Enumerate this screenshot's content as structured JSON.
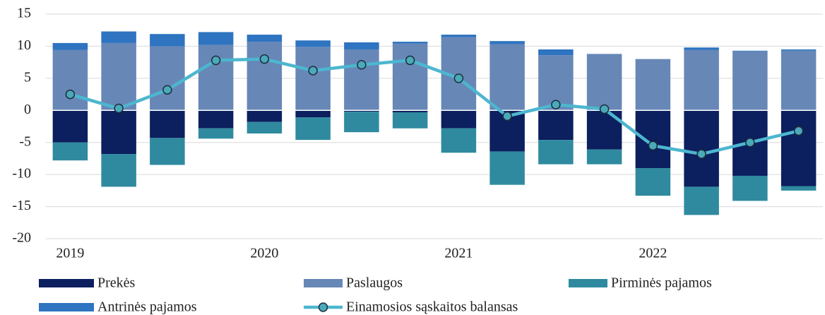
{
  "chart_data": {
    "type": "bar",
    "stacked": true,
    "categories": [
      "2019",
      null,
      null,
      null,
      "2020",
      null,
      null,
      null,
      "2021",
      null,
      null,
      null,
      "2022",
      null,
      null,
      null
    ],
    "series": [
      {
        "name": "Prekės",
        "type": "bar",
        "color": "#0c1f5e",
        "values": [
          -5.0,
          -6.8,
          -4.3,
          -2.8,
          -1.8,
          -1.1,
          -0.2,
          -0.3,
          -2.8,
          -6.4,
          -4.6,
          -6.1,
          -9.0,
          -11.9,
          -10.2,
          -11.8
        ]
      },
      {
        "name": "Paslaugos",
        "type": "bar",
        "color": "#6787b7",
        "values": [
          9.4,
          10.5,
          10.0,
          10.2,
          10.7,
          9.9,
          9.5,
          10.4,
          11.4,
          10.3,
          8.6,
          8.8,
          8.0,
          9.4,
          9.2,
          9.3
        ]
      },
      {
        "name": "Pirminės pajamos",
        "type": "bar",
        "color": "#2f8a9f",
        "values": [
          -2.8,
          -5.1,
          -4.2,
          -1.6,
          -1.8,
          -3.5,
          -3.2,
          -2.5,
          -3.8,
          -5.2,
          -3.8,
          -2.3,
          -4.3,
          -4.4,
          -3.9,
          -0.7
        ]
      },
      {
        "name": "Antrinės pajamos",
        "type": "bar",
        "color": "#2e74c0",
        "values": [
          1.1,
          1.8,
          1.9,
          2.0,
          1.1,
          1.0,
          1.1,
          0.3,
          0.4,
          0.5,
          0.9,
          0,
          0,
          0.4,
          0.1,
          0.2
        ]
      },
      {
        "name": "Einamosios sąskaitos balansas",
        "type": "line",
        "color": "#4db6cf",
        "values": [
          2.5,
          0.3,
          3.2,
          7.8,
          8.0,
          6.2,
          7.1,
          7.8,
          5.0,
          -0.9,
          0.9,
          0.2,
          -5.5,
          -6.8,
          -5.0,
          -3.2
        ]
      }
    ],
    "ylim": [
      -20,
      15
    ],
    "yticks": [
      -20,
      -15,
      -10,
      -5,
      0,
      5,
      10,
      15
    ],
    "grid": true
  }
}
